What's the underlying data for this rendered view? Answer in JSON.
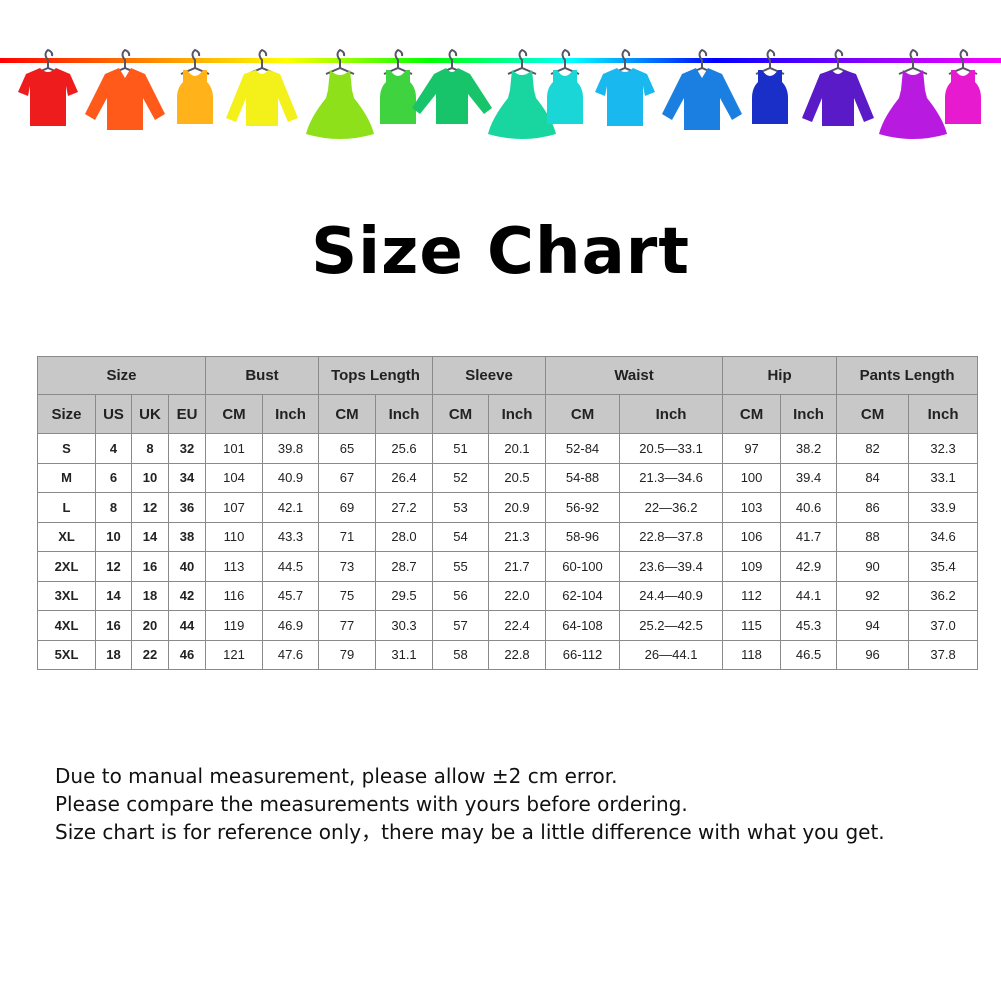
{
  "banner": {
    "rope_colors": [
      "#ff0000",
      "#ff8000",
      "#ffff00",
      "#00ff00",
      "#00ffff",
      "#0000ff",
      "#8000ff",
      "#ff00ff"
    ],
    "garments": [
      {
        "icon": "tshirt-icon",
        "color": "#ee1c1c"
      },
      {
        "icon": "shirt-icon",
        "color": "#ff5a1a"
      },
      {
        "icon": "tank-top-icon",
        "color": "#ffb21a"
      },
      {
        "icon": "sweater-icon",
        "color": "#f3f01a"
      },
      {
        "icon": "dress-icon",
        "color": "#8de01a"
      },
      {
        "icon": "tank-top-icon",
        "color": "#3fd43f"
      },
      {
        "icon": "long-sleeve-icon",
        "color": "#17c46a"
      },
      {
        "icon": "dress-icon",
        "color": "#19d6a0"
      },
      {
        "icon": "tank-top-icon",
        "color": "#1ad6d6"
      },
      {
        "icon": "tshirt-icon",
        "color": "#19b9f0"
      },
      {
        "icon": "shirt-icon",
        "color": "#1a7fe0"
      },
      {
        "icon": "tank-top-icon",
        "color": "#1a2fc8"
      },
      {
        "icon": "sweater-icon",
        "color": "#5a1ac8"
      },
      {
        "icon": "dress-icon",
        "color": "#b81ae0"
      },
      {
        "icon": "tank-top-icon",
        "color": "#e81ad0"
      }
    ]
  },
  "title": "Size Chart",
  "table": {
    "groups": [
      {
        "label": "Size",
        "span": 4
      },
      {
        "label": "Bust",
        "span": 2
      },
      {
        "label": "Tops Length",
        "span": 2
      },
      {
        "label": "Sleeve",
        "span": 2
      },
      {
        "label": "Waist",
        "span": 2
      },
      {
        "label": "Hip",
        "span": 2
      },
      {
        "label": "Pants Length",
        "span": 2
      }
    ],
    "columns": [
      "Size",
      "US",
      "UK",
      "EU",
      "CM",
      "Inch",
      "CM",
      "Inch",
      "CM",
      "Inch",
      "CM",
      "Inch",
      "CM",
      "Inch",
      "CM",
      "Inch"
    ],
    "rows": [
      [
        "S",
        "4",
        "8",
        "32",
        "101",
        "39.8",
        "65",
        "25.6",
        "51",
        "20.1",
        "52-84",
        "20.5—33.1",
        "97",
        "38.2",
        "82",
        "32.3"
      ],
      [
        "M",
        "6",
        "10",
        "34",
        "104",
        "40.9",
        "67",
        "26.4",
        "52",
        "20.5",
        "54-88",
        "21.3—34.6",
        "100",
        "39.4",
        "84",
        "33.1"
      ],
      [
        "L",
        "8",
        "12",
        "36",
        "107",
        "42.1",
        "69",
        "27.2",
        "53",
        "20.9",
        "56-92",
        "22—36.2",
        "103",
        "40.6",
        "86",
        "33.9"
      ],
      [
        "XL",
        "10",
        "14",
        "38",
        "110",
        "43.3",
        "71",
        "28.0",
        "54",
        "21.3",
        "58-96",
        "22.8—37.8",
        "106",
        "41.7",
        "88",
        "34.6"
      ],
      [
        "2XL",
        "12",
        "16",
        "40",
        "113",
        "44.5",
        "73",
        "28.7",
        "55",
        "21.7",
        "60-100",
        "23.6—39.4",
        "109",
        "42.9",
        "90",
        "35.4"
      ],
      [
        "3XL",
        "14",
        "18",
        "42",
        "116",
        "45.7",
        "75",
        "29.5",
        "56",
        "22.0",
        "62-104",
        "24.4—40.9",
        "112",
        "44.1",
        "92",
        "36.2"
      ],
      [
        "4XL",
        "16",
        "20",
        "44",
        "119",
        "46.9",
        "77",
        "30.3",
        "57",
        "22.4",
        "64-108",
        "25.2—42.5",
        "115",
        "45.3",
        "94",
        "37.0"
      ],
      [
        "5XL",
        "18",
        "22",
        "46",
        "121",
        "47.6",
        "79",
        "31.1",
        "58",
        "22.8",
        "66-112",
        "26—44.1",
        "118",
        "46.5",
        "96",
        "37.8"
      ]
    ]
  },
  "notes": [
    "Due to manual measurement, please allow ±2 cm error.",
    "Please compare the measurements with yours before ordering.",
    "Size chart is for reference only，there may be a little difference with what you get."
  ]
}
